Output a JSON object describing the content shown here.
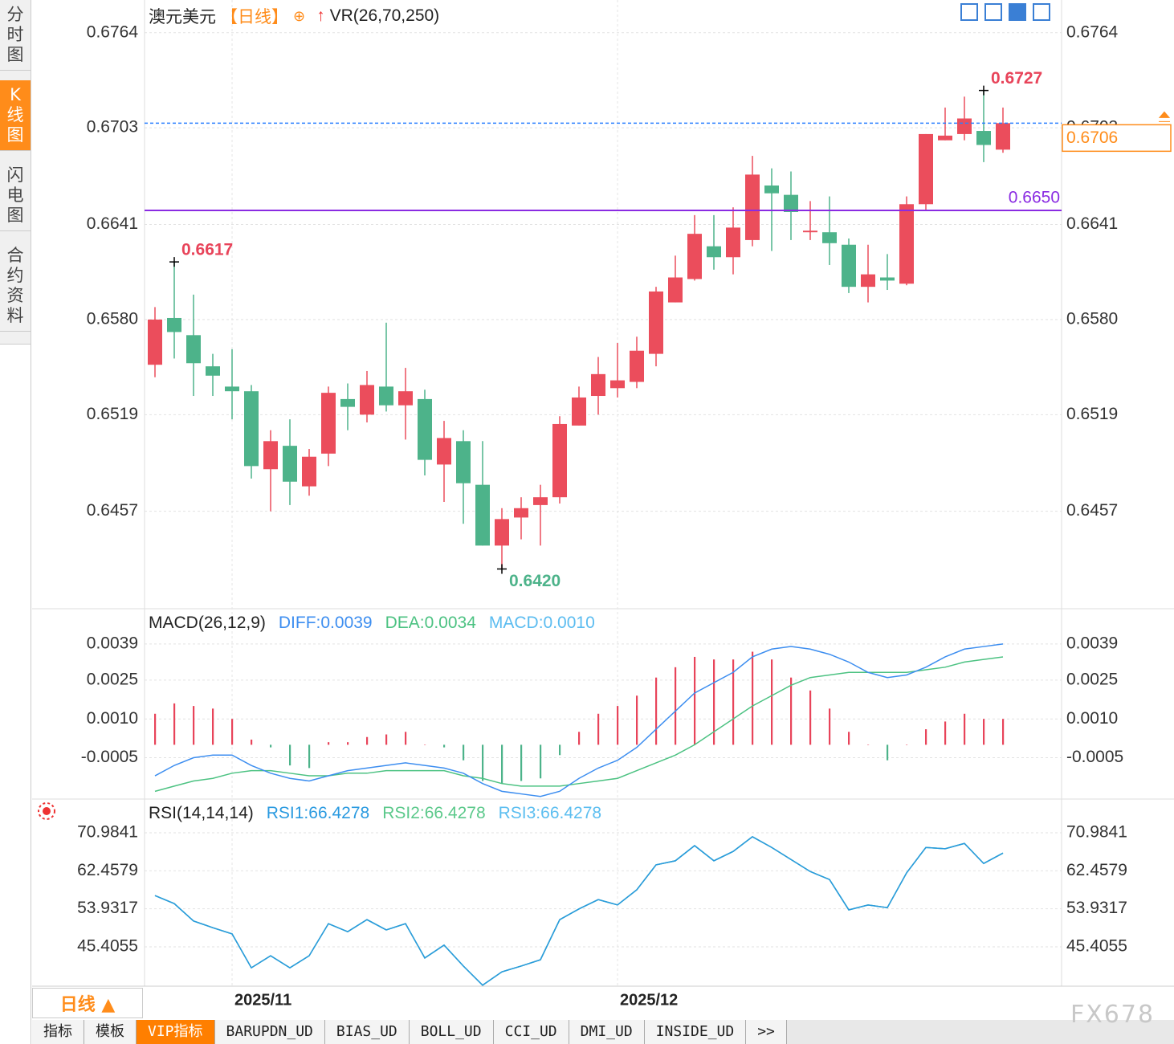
{
  "sidebar": {
    "tabs": [
      "分时图",
      "K线图",
      "闪电图",
      "合约资料"
    ]
  },
  "chart_data": [
    {
      "type": "candlestick",
      "title": "澳元美元",
      "period": "【日线】",
      "indicator": "VR(26,70,250)",
      "categories": [
        null,
        null,
        null,
        null,
        "2025/11",
        null,
        null,
        null,
        null,
        null,
        null,
        null,
        null,
        null,
        null,
        null,
        null,
        null,
        null,
        null,
        null,
        null,
        null,
        null,
        "2025/12",
        null,
        null,
        null,
        null,
        null,
        null,
        null,
        null,
        null,
        null,
        null,
        null,
        null,
        null,
        null,
        null,
        null,
        null,
        null,
        null
      ],
      "open": [
        0.6551,
        0.6581,
        0.657,
        0.655,
        0.6537,
        0.6534,
        0.6484,
        0.6499,
        0.6473,
        0.6494,
        0.6529,
        0.6519,
        0.6537,
        0.6525,
        0.6529,
        0.6487,
        0.6502,
        0.6474,
        0.6435,
        0.6453,
        0.6461,
        0.6466,
        0.6512,
        0.6531,
        0.6536,
        0.654,
        0.6558,
        0.6591,
        0.6606,
        0.6627,
        0.662,
        0.6631,
        0.6666,
        0.666,
        0.6636,
        0.6636,
        0.6628,
        0.6601,
        0.6607,
        0.6603,
        0.6654,
        0.6695,
        0.6699,
        0.6701,
        0.6689
      ],
      "high": [
        0.6588,
        0.6617,
        0.6596,
        0.6558,
        0.6561,
        0.6538,
        0.6509,
        0.6516,
        0.6497,
        0.6537,
        0.6539,
        0.6547,
        0.6578,
        0.6549,
        0.6535,
        0.6515,
        0.6509,
        0.6502,
        0.6459,
        0.6466,
        0.6474,
        0.6518,
        0.6537,
        0.6556,
        0.6565,
        0.6569,
        0.6601,
        0.6621,
        0.6647,
        0.6647,
        0.6652,
        0.6685,
        0.6677,
        0.6675,
        0.6656,
        0.6659,
        0.6632,
        0.6628,
        0.6622,
        0.6659,
        0.6699,
        0.6716,
        0.6723,
        0.6727,
        0.6716
      ],
      "low": [
        0.6543,
        0.6555,
        0.6531,
        0.6531,
        0.6516,
        0.6478,
        0.6457,
        0.6461,
        0.6467,
        0.6486,
        0.6509,
        0.6514,
        0.6521,
        0.6503,
        0.648,
        0.6463,
        0.6449,
        0.6435,
        0.642,
        0.6439,
        0.6435,
        0.6462,
        0.6512,
        0.6519,
        0.653,
        0.6536,
        0.655,
        0.6591,
        0.6605,
        0.6612,
        0.6609,
        0.6627,
        0.6624,
        0.6631,
        0.6631,
        0.6615,
        0.6597,
        0.6591,
        0.6599,
        0.6602,
        0.665,
        0.6695,
        0.6695,
        0.6681,
        0.6687
      ],
      "close": [
        0.658,
        0.6572,
        0.6552,
        0.6544,
        0.6534,
        0.6486,
        0.6502,
        0.6476,
        0.6492,
        0.6533,
        0.6524,
        0.6538,
        0.6525,
        0.6534,
        0.649,
        0.6504,
        0.6475,
        0.6435,
        0.6452,
        0.6459,
        0.6466,
        0.6513,
        0.653,
        0.6545,
        0.6541,
        0.656,
        0.6598,
        0.6607,
        0.6635,
        0.662,
        0.6639,
        0.6673,
        0.6661,
        0.6649,
        0.6637,
        0.6629,
        0.6601,
        0.6609,
        0.6605,
        0.6654,
        0.6699,
        0.6698,
        0.6709,
        0.6692,
        0.6706
      ],
      "up_color": "#eb4d5c",
      "down_color": "#4db38a",
      "ylim": [
        0.6395,
        0.6785
      ],
      "yticks": [
        0.6764,
        0.6703,
        0.6641,
        {
          "value": 0.658,
          "label": "0.6580"
        },
        0.6519,
        0.6457
      ],
      "grid": true,
      "annotations": [
        {
          "index": 1,
          "value": 0.6617,
          "label": "0.6617",
          "color": "#e8445a"
        },
        {
          "index": 43,
          "value": 0.6727,
          "label": "0.6727",
          "color": "#e8445a"
        },
        {
          "index": 18,
          "value": 0.642,
          "label": "0.6420",
          "color": "#4db38a"
        }
      ],
      "current_price": {
        "value": 0.6706,
        "label": "0.6706",
        "color": "#ff8c1a",
        "line_color": "#2a7fff"
      },
      "level_line": {
        "value": 0.665,
        "label": "0.6650",
        "color": "#8a2be2"
      }
    },
    {
      "type": "line",
      "title": "MACD(26,12,9)",
      "ylim": [
        -0.0021,
        0.0052
      ],
      "yticks": [
        0.0039,
        0.0025,
        {
          "value": 0.001,
          "label": "0.0010"
        },
        -0.0005
      ],
      "grid": true,
      "series": [
        {
          "name": "DIFF:0.0039",
          "color": "#3d8ef0",
          "values": [
            -0.0012,
            -0.0008,
            -0.0005,
            -0.0004,
            -0.0004,
            -0.0008,
            -0.0011,
            -0.0013,
            -0.0014,
            -0.0012,
            -0.001,
            -0.0009,
            -0.0008,
            -0.0007,
            -0.0008,
            -0.0009,
            -0.0011,
            -0.0015,
            -0.0018,
            -0.0019,
            -0.002,
            -0.0018,
            -0.0013,
            -0.0009,
            -0.0006,
            -0.0001,
            0.0006,
            0.0013,
            0.002,
            0.0024,
            0.0028,
            0.0034,
            0.0037,
            0.0038,
            0.0037,
            0.0035,
            0.0032,
            0.0028,
            0.0026,
            0.0027,
            0.003,
            0.0034,
            0.0037,
            0.0038,
            0.0039
          ]
        },
        {
          "name": "DEA:0.0034",
          "color": "#4cc282",
          "values": [
            -0.0018,
            -0.0016,
            -0.0014,
            -0.0013,
            -0.0011,
            -0.001,
            -0.001,
            -0.0011,
            -0.0012,
            -0.0012,
            -0.0011,
            -0.0011,
            -0.001,
            -0.001,
            -0.001,
            -0.001,
            -0.0012,
            -0.0013,
            -0.0015,
            -0.0016,
            -0.0016,
            -0.0016,
            -0.0015,
            -0.0014,
            -0.0013,
            -0.001,
            -0.0007,
            -0.0004,
            0.0,
            0.0005,
            0.001,
            0.0015,
            0.0019,
            0.0023,
            0.0026,
            0.0027,
            0.0028,
            0.0028,
            0.0028,
            0.0028,
            0.0029,
            0.003,
            0.0032,
            0.0033,
            0.0034
          ]
        },
        {
          "name": "MACD:0.0010",
          "color": "#5bbcf0",
          "type": "bar",
          "up_color": "#e8445a",
          "down_color": "#4db38a",
          "values": [
            0.0012,
            0.0016,
            0.0015,
            0.0014,
            0.001,
            0.0002,
            -0.0001,
            -0.0008,
            -0.0009,
            0.0001,
            0.0001,
            0.0003,
            0.0004,
            0.0005,
            0.0,
            -0.0001,
            -0.0006,
            -0.0014,
            -0.0015,
            -0.0014,
            -0.0013,
            -0.0004,
            0.0005,
            0.0012,
            0.0015,
            0.0019,
            0.0026,
            0.003,
            0.0034,
            0.0033,
            0.0033,
            0.0036,
            0.0033,
            0.0026,
            0.0021,
            0.0014,
            0.0005,
            0.0,
            -0.0006,
            0.0,
            0.0006,
            0.0009,
            0.0012,
            0.001,
            0.001
          ]
        }
      ]
    },
    {
      "type": "line",
      "title": "RSI(14,14,14)",
      "ylim": [
        36.58,
        78.19
      ],
      "yticks": [
        70.9841,
        62.4579,
        53.9317,
        45.4055
      ],
      "grid": true,
      "series": [
        {
          "name": "RSI1:66.4278",
          "color": "#2a9ae0",
          "values": [
            56.9,
            55.1,
            51.2,
            49.7,
            48.3,
            40.7,
            43.4,
            40.7,
            43.4,
            50.6,
            48.8,
            51.5,
            49.2,
            50.6,
            42.9,
            45.8,
            41.1,
            36.8,
            39.8,
            41.1,
            42.5,
            51.5,
            53.9,
            56.0,
            54.8,
            58.2,
            63.8,
            64.7,
            68.1,
            64.7,
            66.8,
            70.1,
            67.7,
            65.0,
            62.3,
            60.5,
            53.7,
            54.8,
            54.2,
            62.0,
            67.7,
            67.4,
            68.6,
            64.1,
            66.4278
          ]
        },
        {
          "name": "RSI2:66.4278",
          "color": "#5cc98b",
          "values": [
            56.9,
            55.1,
            51.2,
            49.7,
            48.3,
            40.7,
            43.4,
            40.7,
            43.4,
            50.6,
            48.8,
            51.5,
            49.2,
            50.6,
            42.9,
            45.8,
            41.1,
            36.8,
            39.8,
            41.1,
            42.5,
            51.5,
            53.9,
            56.0,
            54.8,
            58.2,
            63.8,
            64.7,
            68.1,
            64.7,
            66.8,
            70.1,
            67.7,
            65.0,
            62.3,
            60.5,
            53.7,
            54.8,
            54.2,
            62.0,
            67.7,
            67.4,
            68.6,
            64.1,
            66.4278
          ]
        },
        {
          "name": "RSI3:66.4278",
          "color": "#5cbef0",
          "values": [
            56.9,
            55.1,
            51.2,
            49.7,
            48.3,
            40.7,
            43.4,
            40.7,
            43.4,
            50.6,
            48.8,
            51.5,
            49.2,
            50.6,
            42.9,
            45.8,
            41.1,
            36.8,
            39.8,
            41.1,
            42.5,
            51.5,
            53.9,
            56.0,
            54.8,
            58.2,
            63.8,
            64.7,
            68.1,
            64.7,
            66.8,
            70.1,
            67.7,
            65.0,
            62.3,
            60.5,
            53.7,
            54.8,
            54.2,
            62.0,
            67.7,
            67.4,
            68.6,
            64.1,
            66.4278
          ]
        }
      ]
    }
  ],
  "footer": {
    "period_button": "日线 ▲",
    "tabs": [
      "指标",
      "模板",
      "VIP指标",
      "BARUPDN_UD",
      "BIAS_UD",
      "BOLL_UD",
      "CCI_UD",
      "DMI_UD",
      "INSIDE_UD",
      ">>"
    ],
    "watermark": "FX678"
  }
}
